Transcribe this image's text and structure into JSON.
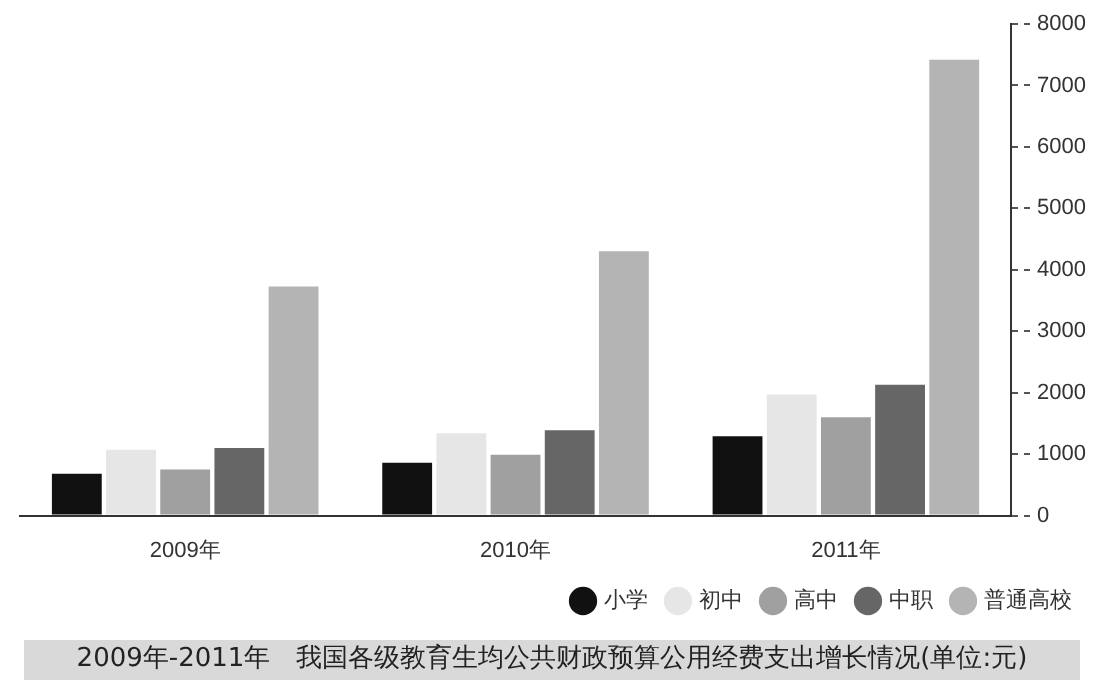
{
  "chart_data": {
    "type": "bar",
    "title": "2009年-2011年　我国各级教育生均公共财政预算公用经费支出增长情况(单位:元)",
    "categories": [
      "2009年",
      "2010年",
      "2011年"
    ],
    "series": [
      {
        "name": "小学",
        "color": "#111111",
        "values": [
          680,
          860,
          1290
        ]
      },
      {
        "name": "初中",
        "color": "#e6e6e6",
        "values": [
          1070,
          1340,
          1970
        ]
      },
      {
        "name": "高中",
        "color": "#a0a0a0",
        "values": [
          750,
          990,
          1600
        ]
      },
      {
        "name": "中职",
        "color": "#666666",
        "values": [
          1100,
          1390,
          2130
        ]
      },
      {
        "name": "普通高校",
        "color": "#b4b4b4",
        "values": [
          3730,
          4300,
          7420
        ]
      }
    ],
    "ylim": [
      0,
      8000
    ],
    "yticks": [
      0,
      1000,
      2000,
      3000,
      4000,
      5000,
      6000,
      7000,
      8000
    ],
    "grid": false,
    "legend": "bottom right"
  }
}
